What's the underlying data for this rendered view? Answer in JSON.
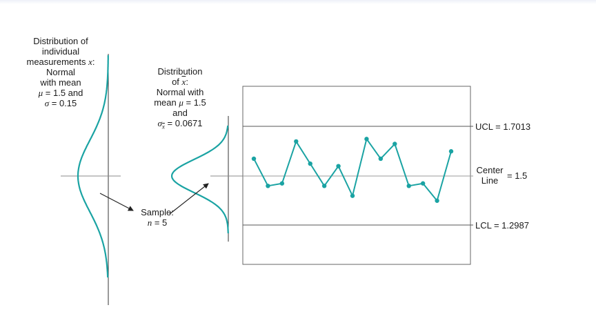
{
  "colors": {
    "curve": "#1aa3a3",
    "axis": "#333333",
    "text": "#1a1a1a"
  },
  "individual_dist": {
    "line1": "Distribution of",
    "line2": "individual",
    "line3_text": "measurements ",
    "line3_var": "x",
    "line3_suffix": ":",
    "line4": "Normal",
    "line5": "with mean",
    "line6_sym": "μ",
    "line6_rest": " = 1.5 and",
    "line7_sym": "σ",
    "line7_rest": " = 0.15"
  },
  "xbar_dist": {
    "line1": "Distribution",
    "line2_pre": "of ",
    "line2_var": "x",
    "line2_suffix": ":",
    "line3": "Normal with",
    "line4_pre": "mean ",
    "line4_sym": "μ",
    "line4_rest": " = 1.5",
    "line5": "and",
    "line6_sym": "σ",
    "line6_sub": "x",
    "line6_rest": " = 0.0671"
  },
  "sample": {
    "line1": "Sample:",
    "line2_var": "n",
    "line2_rest": " = 5"
  },
  "chart": {
    "ucl_label": "UCL = 1.7013",
    "center_label_line1": "Center",
    "center_label_line2": "Line",
    "center_value": "= 1.5",
    "lcl_label": "LCL = 1.2987"
  },
  "chart_data": {
    "type": "line",
    "ucl": 1.7013,
    "center": 1.5,
    "lcl": 1.2987,
    "points": [
      1.57,
      1.46,
      1.47,
      1.64,
      1.55,
      1.46,
      1.54,
      1.42,
      1.65,
      1.57,
      1.63,
      1.46,
      1.47,
      1.4,
      1.6
    ]
  }
}
